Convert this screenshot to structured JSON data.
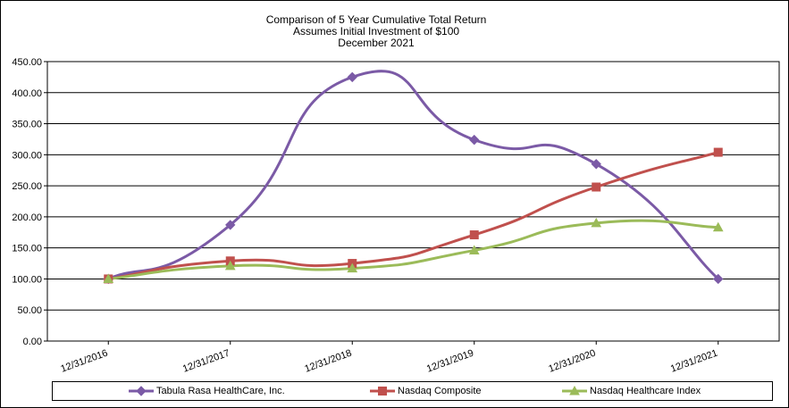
{
  "chart_data": {
    "type": "line",
    "title": "Comparison of 5 Year Cumulative Total Return",
    "subtitle_lines": [
      "Assumes Initial Investment of $100",
      "December 2021"
    ],
    "categories": [
      "12/31/2016",
      "12/31/2017",
      "12/31/2018",
      "12/31/2019",
      "12/31/2020",
      "12/31/2021"
    ],
    "ylim": [
      0,
      450
    ],
    "yticks": [
      "0.00",
      "50.00",
      "100.00",
      "150.00",
      "200.00",
      "250.00",
      "300.00",
      "350.00",
      "400.00",
      "450.00"
    ],
    "ytick_values": [
      0,
      50,
      100,
      150,
      200,
      250,
      300,
      350,
      400,
      450
    ],
    "grid": true,
    "legend_position": "bottom",
    "series": [
      {
        "name": "Tabula Rasa HealthCare, Inc.",
        "color": "#7b5aa6",
        "marker": "diamond",
        "values": [
          100,
          187,
          425,
          324,
          285,
          100
        ]
      },
      {
        "name": "Nasdaq Composite",
        "color": "#c0504d",
        "marker": "square",
        "values": [
          100,
          129,
          125,
          171,
          248,
          304
        ]
      },
      {
        "name": "Nasdaq Healthcare Index",
        "color": "#9bbb59",
        "marker": "triangle",
        "values": [
          100,
          121,
          117,
          146,
          190,
          183
        ]
      }
    ]
  }
}
